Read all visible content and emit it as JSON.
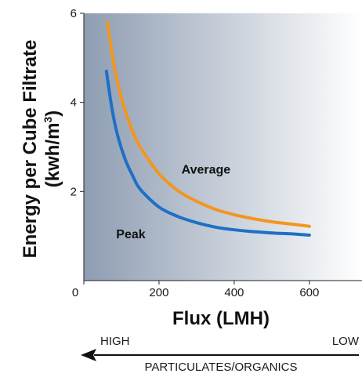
{
  "chart_data": {
    "type": "line",
    "title": "",
    "xlabel": "Flux (LMH)",
    "ylabel_line1": "Energy per Cube Filtrate",
    "ylabel_unit_prefix": "(kwh/m",
    "ylabel_unit_sup": "3",
    "ylabel_unit_suffix": ")",
    "xlim": [
      0,
      740
    ],
    "ylim": [
      0,
      6
    ],
    "x_ticks": [
      "0",
      "200",
      "400",
      "600"
    ],
    "x_tick_values": [
      0,
      200,
      400,
      600
    ],
    "y_ticks": [
      "2",
      "4",
      "6"
    ],
    "y_tick_values": [
      2,
      4,
      6
    ],
    "grid": false,
    "background_gradient": [
      "#8e9db2",
      "#ffffff"
    ],
    "series": [
      {
        "name": "Average",
        "color": "#f2961f",
        "x": [
          63,
          80,
          100,
          125,
          150,
          200,
          250,
          300,
          350,
          400,
          450,
          500,
          550,
          600
        ],
        "y": [
          5.8,
          4.85,
          4.1,
          3.45,
          3.0,
          2.4,
          2.02,
          1.78,
          1.6,
          1.48,
          1.39,
          1.32,
          1.27,
          1.22
        ]
      },
      {
        "name": "Peak",
        "color": "#1f6fc6",
        "x": [
          60,
          75,
          90,
          110,
          130,
          150,
          200,
          250,
          300,
          350,
          400,
          450,
          500,
          550,
          600
        ],
        "y": [
          4.7,
          3.85,
          3.25,
          2.72,
          2.35,
          2.05,
          1.65,
          1.44,
          1.3,
          1.2,
          1.14,
          1.1,
          1.07,
          1.05,
          1.02
        ]
      }
    ],
    "annotations": [
      {
        "text": "Average",
        "x": 325,
        "y": 2.4
      },
      {
        "text": "Peak",
        "x": 125,
        "y": 0.95
      }
    ]
  },
  "footer": {
    "left_label": "HIGH",
    "right_label": "LOW",
    "caption": "PARTICULATES/ORGANICS"
  }
}
